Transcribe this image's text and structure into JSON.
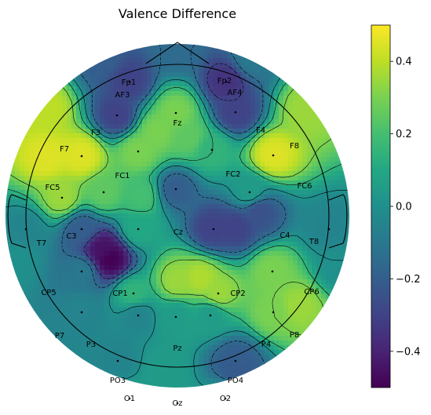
{
  "chart_data": {
    "type": "heatmap",
    "subtype": "eeg-topomap",
    "title": "Valence Difference",
    "colormap": "viridis",
    "color_range": [
      -0.5,
      0.5
    ],
    "colorbar_ticks": [
      "0.4",
      "0.2",
      "0.0",
      "−0.2",
      "−0.4"
    ],
    "colorbar_tick_values": [
      0.4,
      0.2,
      0.0,
      -0.2,
      -0.4
    ],
    "contour_lines": true,
    "electrodes": [
      {
        "name": "Fp1",
        "value": -0.3
      },
      {
        "name": "Fp2",
        "value": -0.35
      },
      {
        "name": "AF3",
        "value": -0.3
      },
      {
        "name": "AF4",
        "value": -0.3
      },
      {
        "name": "F3",
        "value": 0.3
      },
      {
        "name": "Fz",
        "value": 0.3
      },
      {
        "name": "F4",
        "value": 0.15
      },
      {
        "name": "F7",
        "value": 0.45
      },
      {
        "name": "F8",
        "value": 0.45
      },
      {
        "name": "FC5",
        "value": 0.35
      },
      {
        "name": "FC1",
        "value": 0.25
      },
      {
        "name": "FC2",
        "value": -0.2
      },
      {
        "name": "FC6",
        "value": 0.05
      },
      {
        "name": "T7",
        "value": -0.05
      },
      {
        "name": "C3",
        "value": -0.2
      },
      {
        "name": "Cz",
        "value": 0.1
      },
      {
        "name": "C4",
        "value": -0.3
      },
      {
        "name": "T8",
        "value": -0.05
      },
      {
        "name": "CP5",
        "value": -0.1
      },
      {
        "name": "CP1",
        "value": 0.15
      },
      {
        "name": "CP2",
        "value": 0.35
      },
      {
        "name": "CP6",
        "value": 0.3
      },
      {
        "name": "P7",
        "value": -0.05
      },
      {
        "name": "P3",
        "value": -0.05
      },
      {
        "name": "Pz",
        "value": 0.05
      },
      {
        "name": "P4",
        "value": 0.05
      },
      {
        "name": "P8",
        "value": 0.3
      },
      {
        "name": "PO3",
        "value": -0.05
      },
      {
        "name": "PO4",
        "value": -0.2
      },
      {
        "name": "O1",
        "value": 0.05
      },
      {
        "name": "Oz",
        "value": 0.05
      },
      {
        "name": "O2",
        "value": 0.05
      }
    ]
  }
}
